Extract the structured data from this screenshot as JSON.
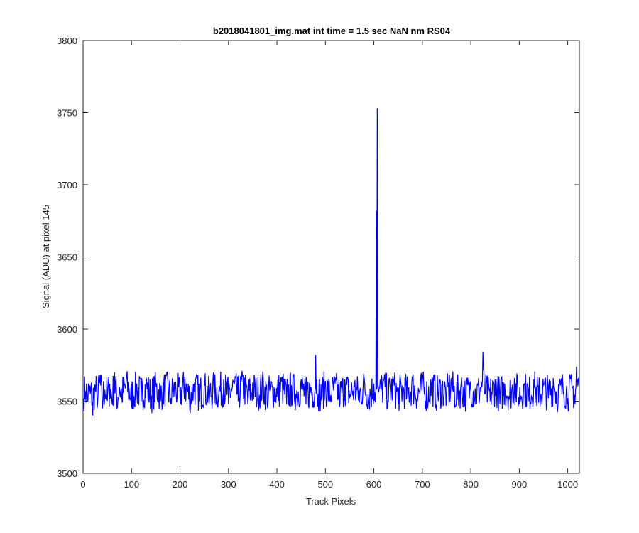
{
  "chart_data": {
    "type": "line",
    "title": "b2018041801_img.mat int time = 1.5 sec  NaN nm RS04",
    "xlabel": "Track Pixels",
    "ylabel": "Signal (ADU) at pixel 145",
    "xlim": [
      0,
      1024
    ],
    "ylim": [
      3500,
      3800
    ],
    "xticks": [
      "0",
      "100",
      "200",
      "300",
      "400",
      "500",
      "600",
      "700",
      "800",
      "900",
      "1000"
    ],
    "yticks": [
      "3500",
      "3550",
      "3600",
      "3650",
      "3700",
      "3750",
      "3800"
    ],
    "grid": false,
    "line_color": "#0000ff",
    "series": [
      {
        "name": "",
        "baseline_mean": 3557,
        "baseline_range": [
          3534,
          3585
        ],
        "points": [
          [
            1,
            3552
          ],
          [
            5,
            3557
          ],
          [
            10,
            3550
          ],
          [
            15,
            3555
          ],
          [
            20,
            3540
          ],
          [
            25,
            3560
          ],
          [
            30,
            3548
          ],
          [
            35,
            3568
          ],
          [
            40,
            3545
          ],
          [
            45,
            3558
          ],
          [
            50,
            3550
          ],
          [
            55,
            3562
          ],
          [
            60,
            3548
          ],
          [
            65,
            3570
          ],
          [
            70,
            3545
          ],
          [
            75,
            3560
          ],
          [
            80,
            3552
          ],
          [
            90,
            3567
          ],
          [
            100,
            3545
          ],
          [
            110,
            3562
          ],
          [
            120,
            3550
          ],
          [
            130,
            3566
          ],
          [
            140,
            3546
          ],
          [
            150,
            3562
          ],
          [
            160,
            3550
          ],
          [
            170,
            3564
          ],
          [
            180,
            3548
          ],
          [
            190,
            3560
          ],
          [
            200,
            3552
          ],
          [
            210,
            3567
          ],
          [
            220,
            3545
          ],
          [
            230,
            3563
          ],
          [
            240,
            3550
          ],
          [
            250,
            3562
          ],
          [
            260,
            3548
          ],
          [
            270,
            3560
          ],
          [
            280,
            3555
          ],
          [
            290,
            3565
          ],
          [
            300,
            3548
          ],
          [
            310,
            3564
          ],
          [
            320,
            3550
          ],
          [
            330,
            3568
          ],
          [
            340,
            3548
          ],
          [
            350,
            3563
          ],
          [
            360,
            3551
          ],
          [
            370,
            3566
          ],
          [
            380,
            3548
          ],
          [
            390,
            3560
          ],
          [
            400,
            3553
          ],
          [
            410,
            3566
          ],
          [
            420,
            3548
          ],
          [
            430,
            3561
          ],
          [
            440,
            3552
          ],
          [
            450,
            3565
          ],
          [
            460,
            3548
          ],
          [
            470,
            3560
          ],
          [
            475,
            3550
          ],
          [
            480,
            3582
          ],
          [
            485,
            3555
          ],
          [
            490,
            3548
          ],
          [
            500,
            3564
          ],
          [
            510,
            3550
          ],
          [
            520,
            3562
          ],
          [
            530,
            3548
          ],
          [
            540,
            3565
          ],
          [
            550,
            3552
          ],
          [
            560,
            3560
          ],
          [
            570,
            3549
          ],
          [
            580,
            3566
          ],
          [
            590,
            3548
          ],
          [
            600,
            3562
          ],
          [
            604,
            3556
          ],
          [
            605,
            3682
          ],
          [
            606,
            3558
          ],
          [
            607,
            3753
          ],
          [
            608,
            3560
          ],
          [
            610,
            3556
          ],
          [
            620,
            3565
          ],
          [
            630,
            3550
          ],
          [
            640,
            3566
          ],
          [
            650,
            3548
          ],
          [
            660,
            3560
          ],
          [
            670,
            3552
          ],
          [
            680,
            3567
          ],
          [
            690,
            3550
          ],
          [
            700,
            3563
          ],
          [
            710,
            3549
          ],
          [
            720,
            3566
          ],
          [
            730,
            3550
          ],
          [
            740,
            3561
          ],
          [
            750,
            3552
          ],
          [
            760,
            3566
          ],
          [
            770,
            3548
          ],
          [
            780,
            3562
          ],
          [
            790,
            3550
          ],
          [
            800,
            3564
          ],
          [
            810,
            3548
          ],
          [
            820,
            3560
          ],
          [
            825,
            3584
          ],
          [
            830,
            3556
          ],
          [
            840,
            3550
          ],
          [
            850,
            3565
          ],
          [
            860,
            3548
          ],
          [
            870,
            3562
          ],
          [
            880,
            3551
          ],
          [
            890,
            3566
          ],
          [
            900,
            3548
          ],
          [
            910,
            3562
          ],
          [
            920,
            3550
          ],
          [
            930,
            3565
          ],
          [
            940,
            3549
          ],
          [
            950,
            3561
          ],
          [
            960,
            3552
          ],
          [
            970,
            3566
          ],
          [
            980,
            3548
          ],
          [
            990,
            3562
          ],
          [
            1000,
            3552
          ],
          [
            1010,
            3560
          ],
          [
            1015,
            3548
          ],
          [
            1018,
            3574
          ],
          [
            1022,
            3566
          ]
        ]
      }
    ]
  }
}
